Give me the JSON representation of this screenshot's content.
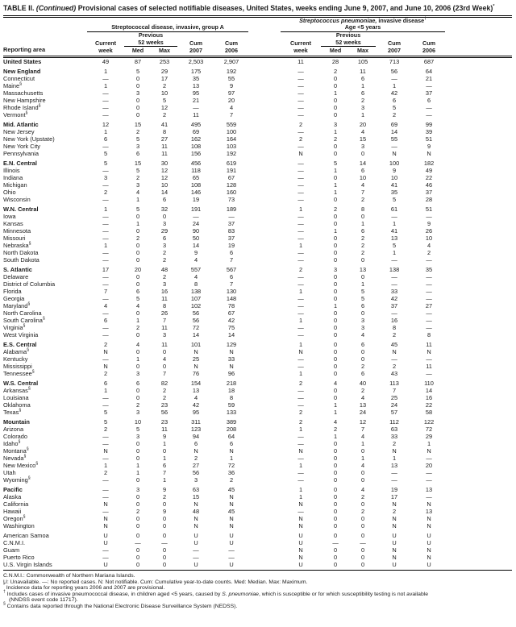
{
  "title": {
    "prefix": "TABLE II. ",
    "continued": "(Continued)",
    "rest": " Provisional cases of selected notifiable diseases, United States, weeks ending June 9, 2007, and June 10, 2006 (23rd Week)",
    "marker": "*"
  },
  "header": {
    "reporting_area": "Reporting area",
    "current": "Current",
    "week": "week",
    "previous": "Previous",
    "weeks52": "52 weeks",
    "med": "Med",
    "max": "Max",
    "cum": "Cum",
    "y2007": "2007",
    "y2006": "2006"
  },
  "groups": [
    {
      "line2": "Streptococcal disease, invasive, group A"
    },
    {
      "line1_italic": "Streptococcus pneumoniae,",
      "line1_rest": " invasive disease",
      "line1_marker": "†",
      "line2": "Age <5 years"
    }
  ],
  "rows": [
    {
      "area": "United States",
      "sup": "",
      "bold": true,
      "sec": false,
      "values": [
        "49",
        "87",
        "253",
        "2,503",
        "2,907",
        "11",
        "28",
        "105",
        "713",
        "687"
      ]
    },
    {
      "area": "New England",
      "sup": "",
      "bold": true,
      "sec": true,
      "values": [
        "1",
        "5",
        "29",
        "175",
        "192",
        "—",
        "2",
        "11",
        "56",
        "64"
      ]
    },
    {
      "area": "Connecticut",
      "sup": "",
      "bold": false,
      "sec": false,
      "values": [
        "—",
        "0",
        "17",
        "35",
        "55",
        "—",
        "0",
        "6",
        "—",
        "21"
      ]
    },
    {
      "area": "Maine",
      "sup": "§",
      "bold": false,
      "sec": false,
      "values": [
        "1",
        "0",
        "2",
        "13",
        "9",
        "—",
        "0",
        "1",
        "1",
        "—"
      ]
    },
    {
      "area": "Massachusetts",
      "sup": "",
      "bold": false,
      "sec": false,
      "values": [
        "—",
        "3",
        "10",
        "95",
        "97",
        "—",
        "1",
        "6",
        "42",
        "37"
      ]
    },
    {
      "area": "New Hampshire",
      "sup": "",
      "bold": false,
      "sec": false,
      "values": [
        "—",
        "0",
        "5",
        "21",
        "20",
        "—",
        "0",
        "2",
        "6",
        "6"
      ]
    },
    {
      "area": "Rhode Island",
      "sup": "§",
      "bold": false,
      "sec": false,
      "values": [
        "—",
        "0",
        "12",
        "—",
        "4",
        "—",
        "0",
        "3",
        "5",
        "—"
      ]
    },
    {
      "area": "Vermont",
      "sup": "§",
      "bold": false,
      "sec": false,
      "values": [
        "—",
        "0",
        "2",
        "11",
        "7",
        "—",
        "0",
        "1",
        "2",
        "—"
      ]
    },
    {
      "area": "Mid. Atlantic",
      "sup": "",
      "bold": true,
      "sec": true,
      "values": [
        "12",
        "15",
        "41",
        "495",
        "559",
        "2",
        "3",
        "20",
        "69",
        "99"
      ]
    },
    {
      "area": "New Jersey",
      "sup": "",
      "bold": false,
      "sec": false,
      "values": [
        "1",
        "2",
        "8",
        "69",
        "100",
        "—",
        "1",
        "4",
        "14",
        "39"
      ]
    },
    {
      "area": "New York (Upstate)",
      "sup": "",
      "bold": false,
      "sec": false,
      "values": [
        "6",
        "5",
        "27",
        "162",
        "164",
        "2",
        "2",
        "15",
        "55",
        "51"
      ]
    },
    {
      "area": "New York City",
      "sup": "",
      "bold": false,
      "sec": false,
      "values": [
        "—",
        "3",
        "11",
        "108",
        "103",
        "—",
        "0",
        "3",
        "—",
        "9"
      ]
    },
    {
      "area": "Pennsylvania",
      "sup": "",
      "bold": false,
      "sec": false,
      "values": [
        "5",
        "6",
        "11",
        "156",
        "192",
        "N",
        "0",
        "0",
        "N",
        "N"
      ]
    },
    {
      "area": "E.N. Central",
      "sup": "",
      "bold": true,
      "sec": true,
      "values": [
        "5",
        "15",
        "30",
        "456",
        "619",
        "—",
        "5",
        "14",
        "100",
        "182"
      ]
    },
    {
      "area": "Illinois",
      "sup": "",
      "bold": false,
      "sec": false,
      "values": [
        "—",
        "5",
        "12",
        "118",
        "191",
        "—",
        "1",
        "6",
        "9",
        "49"
      ]
    },
    {
      "area": "Indiana",
      "sup": "",
      "bold": false,
      "sec": false,
      "values": [
        "3",
        "2",
        "12",
        "65",
        "67",
        "—",
        "0",
        "10",
        "10",
        "22"
      ]
    },
    {
      "area": "Michigan",
      "sup": "",
      "bold": false,
      "sec": false,
      "values": [
        "—",
        "3",
        "10",
        "108",
        "128",
        "—",
        "1",
        "4",
        "41",
        "46"
      ]
    },
    {
      "area": "Ohio",
      "sup": "",
      "bold": false,
      "sec": false,
      "values": [
        "2",
        "4",
        "14",
        "146",
        "160",
        "—",
        "1",
        "7",
        "35",
        "37"
      ]
    },
    {
      "area": "Wisconsin",
      "sup": "",
      "bold": false,
      "sec": false,
      "values": [
        "—",
        "1",
        "6",
        "19",
        "73",
        "—",
        "0",
        "2",
        "5",
        "28"
      ]
    },
    {
      "area": "W.N. Central",
      "sup": "",
      "bold": true,
      "sec": true,
      "values": [
        "1",
        "5",
        "32",
        "191",
        "189",
        "1",
        "2",
        "8",
        "61",
        "51"
      ]
    },
    {
      "area": "Iowa",
      "sup": "",
      "bold": false,
      "sec": false,
      "values": [
        "—",
        "0",
        "0",
        "—",
        "—",
        "—",
        "0",
        "0",
        "—",
        "—"
      ]
    },
    {
      "area": "Kansas",
      "sup": "",
      "bold": false,
      "sec": false,
      "values": [
        "—",
        "1",
        "3",
        "24",
        "37",
        "—",
        "0",
        "1",
        "1",
        "9"
      ]
    },
    {
      "area": "Minnesota",
      "sup": "",
      "bold": false,
      "sec": false,
      "values": [
        "—",
        "0",
        "29",
        "90",
        "83",
        "—",
        "1",
        "6",
        "41",
        "26"
      ]
    },
    {
      "area": "Missouri",
      "sup": "",
      "bold": false,
      "sec": false,
      "values": [
        "—",
        "2",
        "6",
        "50",
        "37",
        "—",
        "0",
        "2",
        "13",
        "10"
      ]
    },
    {
      "area": "Nebraska",
      "sup": "§",
      "bold": false,
      "sec": false,
      "values": [
        "1",
        "0",
        "3",
        "14",
        "19",
        "1",
        "0",
        "2",
        "5",
        "4"
      ]
    },
    {
      "area": "North Dakota",
      "sup": "",
      "bold": false,
      "sec": false,
      "values": [
        "—",
        "0",
        "2",
        "9",
        "6",
        "—",
        "0",
        "2",
        "1",
        "2"
      ]
    },
    {
      "area": "South Dakota",
      "sup": "",
      "bold": false,
      "sec": false,
      "values": [
        "—",
        "0",
        "2",
        "4",
        "7",
        "—",
        "0",
        "0",
        "—",
        "—"
      ]
    },
    {
      "area": "S. Atlantic",
      "sup": "",
      "bold": true,
      "sec": true,
      "values": [
        "17",
        "20",
        "48",
        "557",
        "567",
        "2",
        "3",
        "13",
        "138",
        "35"
      ]
    },
    {
      "area": "Delaware",
      "sup": "",
      "bold": false,
      "sec": false,
      "values": [
        "—",
        "0",
        "2",
        "4",
        "6",
        "—",
        "0",
        "0",
        "—",
        "—"
      ]
    },
    {
      "area": "District of Columbia",
      "sup": "",
      "bold": false,
      "sec": false,
      "values": [
        "—",
        "0",
        "3",
        "8",
        "7",
        "—",
        "0",
        "1",
        "—",
        "—"
      ]
    },
    {
      "area": "Florida",
      "sup": "",
      "bold": false,
      "sec": false,
      "values": [
        "7",
        "6",
        "16",
        "138",
        "130",
        "1",
        "0",
        "5",
        "33",
        "—"
      ]
    },
    {
      "area": "Georgia",
      "sup": "",
      "bold": false,
      "sec": false,
      "values": [
        "—",
        "5",
        "11",
        "107",
        "148",
        "—",
        "0",
        "5",
        "42",
        "—"
      ]
    },
    {
      "area": "Maryland",
      "sup": "§",
      "bold": false,
      "sec": false,
      "values": [
        "4",
        "4",
        "8",
        "102",
        "78",
        "—",
        "1",
        "6",
        "37",
        "27"
      ]
    },
    {
      "area": "North Carolina",
      "sup": "",
      "bold": false,
      "sec": false,
      "values": [
        "—",
        "0",
        "26",
        "56",
        "67",
        "—",
        "0",
        "0",
        "—",
        "—"
      ]
    },
    {
      "area": "South Carolina",
      "sup": "§",
      "bold": false,
      "sec": false,
      "values": [
        "6",
        "1",
        "7",
        "56",
        "42",
        "1",
        "0",
        "3",
        "16",
        "—"
      ]
    },
    {
      "area": "Virginia",
      "sup": "§",
      "bold": false,
      "sec": false,
      "values": [
        "—",
        "2",
        "11",
        "72",
        "75",
        "—",
        "0",
        "3",
        "8",
        "—"
      ]
    },
    {
      "area": "West Virginia",
      "sup": "",
      "bold": false,
      "sec": false,
      "values": [
        "—",
        "0",
        "3",
        "14",
        "14",
        "—",
        "0",
        "4",
        "2",
        "8"
      ]
    },
    {
      "area": "E.S. Central",
      "sup": "",
      "bold": true,
      "sec": true,
      "values": [
        "2",
        "4",
        "11",
        "101",
        "129",
        "1",
        "0",
        "6",
        "45",
        "11"
      ]
    },
    {
      "area": "Alabama",
      "sup": "§",
      "bold": false,
      "sec": false,
      "values": [
        "N",
        "0",
        "0",
        "N",
        "N",
        "N",
        "0",
        "0",
        "N",
        "N"
      ]
    },
    {
      "area": "Kentucky",
      "sup": "",
      "bold": false,
      "sec": false,
      "values": [
        "—",
        "1",
        "4",
        "25",
        "33",
        "—",
        "0",
        "0",
        "—",
        "—"
      ]
    },
    {
      "area": "Mississippi",
      "sup": "",
      "bold": false,
      "sec": false,
      "values": [
        "N",
        "0",
        "0",
        "N",
        "N",
        "—",
        "0",
        "2",
        "2",
        "11"
      ]
    },
    {
      "area": "Tennessee",
      "sup": "§",
      "bold": false,
      "sec": false,
      "values": [
        "2",
        "3",
        "7",
        "76",
        "96",
        "1",
        "0",
        "6",
        "43",
        "—"
      ]
    },
    {
      "area": "W.S. Central",
      "sup": "",
      "bold": true,
      "sec": true,
      "values": [
        "6",
        "6",
        "82",
        "154",
        "218",
        "2",
        "4",
        "40",
        "113",
        "110"
      ]
    },
    {
      "area": "Arkansas",
      "sup": "§",
      "bold": false,
      "sec": false,
      "values": [
        "1",
        "0",
        "2",
        "13",
        "18",
        "—",
        "0",
        "2",
        "7",
        "14"
      ]
    },
    {
      "area": "Louisiana",
      "sup": "",
      "bold": false,
      "sec": false,
      "values": [
        "—",
        "0",
        "2",
        "4",
        "8",
        "—",
        "0",
        "4",
        "25",
        "16"
      ]
    },
    {
      "area": "Oklahoma",
      "sup": "",
      "bold": false,
      "sec": false,
      "values": [
        "—",
        "2",
        "23",
        "42",
        "59",
        "—",
        "1",
        "13",
        "24",
        "22"
      ]
    },
    {
      "area": "Texas",
      "sup": "§",
      "bold": false,
      "sec": false,
      "values": [
        "5",
        "3",
        "56",
        "95",
        "133",
        "2",
        "1",
        "24",
        "57",
        "58"
      ]
    },
    {
      "area": "Mountain",
      "sup": "",
      "bold": true,
      "sec": true,
      "values": [
        "5",
        "10",
        "23",
        "311",
        "389",
        "2",
        "4",
        "12",
        "112",
        "122"
      ]
    },
    {
      "area": "Arizona",
      "sup": "",
      "bold": false,
      "sec": false,
      "values": [
        "2",
        "5",
        "11",
        "123",
        "208",
        "1",
        "2",
        "7",
        "63",
        "72"
      ]
    },
    {
      "area": "Colorado",
      "sup": "",
      "bold": false,
      "sec": false,
      "values": [
        "—",
        "3",
        "9",
        "94",
        "64",
        "—",
        "1",
        "4",
        "33",
        "29"
      ]
    },
    {
      "area": "Idaho",
      "sup": "§",
      "bold": false,
      "sec": false,
      "values": [
        "—",
        "0",
        "1",
        "6",
        "6",
        "—",
        "0",
        "1",
        "2",
        "1"
      ]
    },
    {
      "area": "Montana",
      "sup": "§",
      "bold": false,
      "sec": false,
      "values": [
        "N",
        "0",
        "0",
        "N",
        "N",
        "N",
        "0",
        "0",
        "N",
        "N"
      ]
    },
    {
      "area": "Nevada",
      "sup": "§",
      "bold": false,
      "sec": false,
      "values": [
        "—",
        "0",
        "1",
        "2",
        "1",
        "—",
        "0",
        "1",
        "1",
        "—"
      ]
    },
    {
      "area": "New Mexico",
      "sup": "§",
      "bold": false,
      "sec": false,
      "values": [
        "1",
        "1",
        "6",
        "27",
        "72",
        "1",
        "0",
        "4",
        "13",
        "20"
      ]
    },
    {
      "area": "Utah",
      "sup": "",
      "bold": false,
      "sec": false,
      "values": [
        "2",
        "1",
        "7",
        "56",
        "36",
        "—",
        "0",
        "0",
        "—",
        "—"
      ]
    },
    {
      "area": "Wyoming",
      "sup": "§",
      "bold": false,
      "sec": false,
      "values": [
        "—",
        "0",
        "1",
        "3",
        "2",
        "—",
        "0",
        "0",
        "—",
        "—"
      ]
    },
    {
      "area": "Pacific",
      "sup": "",
      "bold": true,
      "sec": true,
      "values": [
        "—",
        "3",
        "9",
        "63",
        "45",
        "1",
        "0",
        "4",
        "19",
        "13"
      ]
    },
    {
      "area": "Alaska",
      "sup": "",
      "bold": false,
      "sec": false,
      "values": [
        "—",
        "0",
        "2",
        "15",
        "N",
        "1",
        "0",
        "2",
        "17",
        "—"
      ]
    },
    {
      "area": "California",
      "sup": "",
      "bold": false,
      "sec": false,
      "values": [
        "N",
        "0",
        "0",
        "N",
        "N",
        "N",
        "0",
        "0",
        "N",
        "N"
      ]
    },
    {
      "area": "Hawaii",
      "sup": "",
      "bold": false,
      "sec": false,
      "values": [
        "—",
        "2",
        "9",
        "48",
        "45",
        "—",
        "0",
        "2",
        "2",
        "13"
      ]
    },
    {
      "area": "Oregon",
      "sup": "§",
      "bold": false,
      "sec": false,
      "values": [
        "N",
        "0",
        "0",
        "N",
        "N",
        "N",
        "0",
        "0",
        "N",
        "N"
      ]
    },
    {
      "area": "Washington",
      "sup": "",
      "bold": false,
      "sec": false,
      "values": [
        "N",
        "0",
        "0",
        "N",
        "N",
        "N",
        "0",
        "0",
        "N",
        "N"
      ]
    },
    {
      "area": "American Samoa",
      "sup": "",
      "bold": false,
      "sec": true,
      "values": [
        "U",
        "0",
        "0",
        "U",
        "U",
        "U",
        "0",
        "0",
        "U",
        "U"
      ]
    },
    {
      "area": "C.N.M.I.",
      "sup": "",
      "bold": false,
      "sec": false,
      "values": [
        "U",
        "—",
        "—",
        "U",
        "U",
        "U",
        "—",
        "—",
        "U",
        "U"
      ]
    },
    {
      "area": "Guam",
      "sup": "",
      "bold": false,
      "sec": false,
      "values": [
        "—",
        "0",
        "0",
        "—",
        "—",
        "N",
        "0",
        "0",
        "N",
        "N"
      ]
    },
    {
      "area": "Puerto Rico",
      "sup": "",
      "bold": false,
      "sec": false,
      "values": [
        "—",
        "0",
        "0",
        "—",
        "—",
        "N",
        "0",
        "0",
        "N",
        "N"
      ]
    },
    {
      "area": "U.S. Virgin Islands",
      "sup": "",
      "bold": false,
      "sec": false,
      "values": [
        "U",
        "0",
        "0",
        "U",
        "U",
        "U",
        "0",
        "0",
        "U",
        "U"
      ]
    }
  ],
  "footnotes": [
    {
      "marker": "",
      "text": "C.N.M.I.: Commonwealth of Northern Mariana Islands."
    },
    {
      "marker": "",
      "text": "U: Unavailable.    —: No reported cases.    N: Not notifiable.    Cum: Cumulative year-to-date counts.    Med: Median.    Max: Maximum."
    },
    {
      "marker": "*",
      "text": "Incidence data for reporting years 2006 and 2007 are provisional."
    },
    {
      "marker": "†",
      "pre": "Includes cases of invasive pneumococcal disease, in children aged <5 years, caused by ",
      "italic": "S. pneumoniae",
      "post": ", which is susceptible or for which susceptibility testing is not available",
      "cont": "(NNDSS event code 11717)."
    },
    {
      "marker": "§",
      "text": "Contains data reported through the National Electronic Disease Surveillance System (NEDSS)."
    }
  ]
}
